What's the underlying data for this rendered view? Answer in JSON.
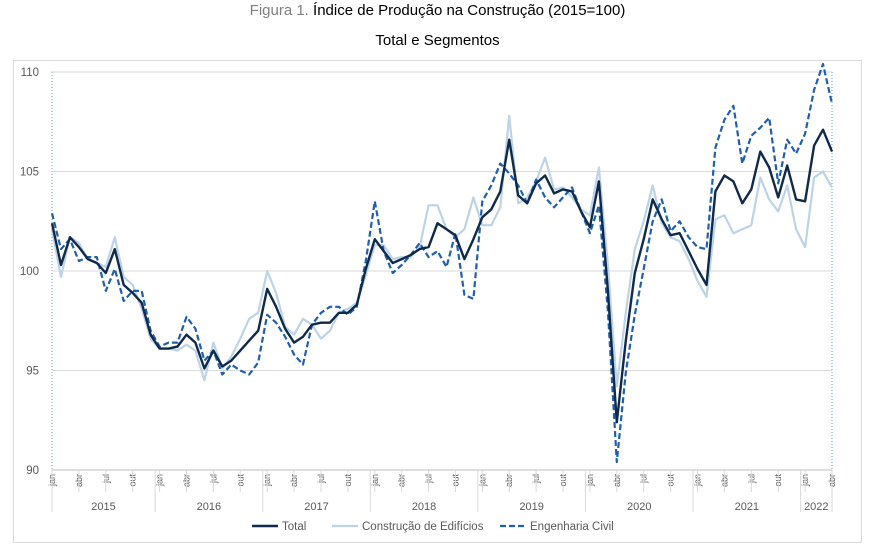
{
  "figure": {
    "title_lead": "Figura 1.",
    "title_main": "Índice de Produção na Construção (2015=100)",
    "subtitle": "Total e Segmentos"
  },
  "colors": {
    "total": "#0f2a4a",
    "edificios": "#bcd3e8",
    "civil": "#1f5fae",
    "grid": "#d9d9d9",
    "axis": "#bfbfbf"
  },
  "chart_data": {
    "type": "line",
    "title": "Índice de Produção na Construção (2015=100)",
    "subtitle": "Total e Segmentos",
    "xlabel": "",
    "ylabel": "",
    "ylim": [
      90,
      110
    ],
    "yticks": [
      90,
      95,
      100,
      105,
      110
    ],
    "grid": true,
    "legend_position": "bottom",
    "month_tick_labels": [
      "jan",
      "abr",
      "jul",
      "out"
    ],
    "years": [
      "2015",
      "2016",
      "2017",
      "2018",
      "2019",
      "2020",
      "2021",
      "2022"
    ],
    "x_start": "2015-01",
    "x_end": "2022-04",
    "series": [
      {
        "name": "Total",
        "style": "solid",
        "values": [
          102.4,
          100.3,
          101.7,
          101.2,
          100.6,
          100.4,
          99.9,
          101.1,
          99.3,
          98.9,
          98.4,
          96.8,
          96.1,
          96.1,
          96.2,
          96.8,
          96.4,
          95.1,
          96.0,
          95.2,
          95.5,
          96.0,
          96.5,
          97.0,
          99.1,
          98.2,
          97.1,
          96.4,
          96.7,
          97.3,
          97.4,
          97.4,
          97.9,
          97.9,
          98.3,
          100.1,
          101.6,
          101.0,
          100.4,
          100.6,
          100.8,
          101.1,
          101.2,
          102.4,
          102.1,
          101.8,
          100.6,
          101.6,
          102.7,
          103.1,
          104.0,
          106.6,
          103.8,
          103.4,
          104.4,
          104.8,
          103.9,
          104.1,
          104.0,
          103.0,
          102.2,
          104.5,
          99.0,
          92.4,
          96.5,
          99.9,
          101.6,
          103.6,
          102.6,
          101.8,
          101.9,
          101.0,
          100.1,
          99.3,
          104.0,
          104.8,
          104.5,
          103.4,
          104.1,
          106.0,
          105.2,
          103.7,
          105.3,
          103.6,
          103.5,
          106.3,
          107.1,
          106.0
        ]
      },
      {
        "name": "Construção de Edifícios",
        "style": "solid",
        "values": [
          102.1,
          99.7,
          101.7,
          101.4,
          100.6,
          100.4,
          100.2,
          101.7,
          99.7,
          99.3,
          98.1,
          96.6,
          96.1,
          96.1,
          96.0,
          96.3,
          96.0,
          94.5,
          96.4,
          95.1,
          95.7,
          96.6,
          97.6,
          97.9,
          100.0,
          98.9,
          97.2,
          96.8,
          97.6,
          97.3,
          96.6,
          97.0,
          97.9,
          98.1,
          98.4,
          99.8,
          101.3,
          101.3,
          100.6,
          100.7,
          100.7,
          101.2,
          103.3,
          103.3,
          102.1,
          101.7,
          102.1,
          103.7,
          102.3,
          102.3,
          103.2,
          107.8,
          103.4,
          103.7,
          104.5,
          105.7,
          104.1,
          104.2,
          103.7,
          103.1,
          102.8,
          105.2,
          100.3,
          94.2,
          97.9,
          101.1,
          102.5,
          104.3,
          102.4,
          101.7,
          101.5,
          100.6,
          99.5,
          98.7,
          102.6,
          102.8,
          101.9,
          102.1,
          102.3,
          104.7,
          103.6,
          103.0,
          104.3,
          102.1,
          101.2,
          104.7,
          105.0,
          104.2
        ]
      },
      {
        "name": "Engenharia Civil",
        "style": "dashed",
        "values": [
          102.9,
          101.1,
          101.6,
          100.5,
          100.7,
          100.7,
          99.0,
          100.1,
          98.5,
          99.0,
          99.0,
          97.0,
          96.2,
          96.4,
          96.4,
          97.7,
          97.1,
          95.5,
          96.0,
          94.8,
          95.3,
          95.0,
          94.8,
          95.4,
          97.8,
          97.4,
          96.7,
          95.8,
          95.3,
          97.3,
          97.9,
          98.2,
          98.2,
          97.8,
          98.2,
          100.5,
          103.5,
          101.0,
          99.9,
          100.3,
          100.8,
          101.4,
          100.7,
          101.0,
          100.2,
          101.9,
          98.8,
          98.6,
          103.5,
          104.3,
          105.4,
          104.9,
          104.3,
          103.4,
          104.6,
          103.7,
          103.2,
          103.7,
          104.2,
          103.0,
          101.9,
          103.3,
          98.0,
          90.4,
          94.9,
          97.8,
          100.1,
          102.5,
          103.6,
          102.0,
          102.5,
          101.7,
          101.2,
          101.1,
          106.2,
          107.6,
          108.3,
          105.4,
          106.8,
          107.2,
          107.7,
          104.4,
          106.6,
          105.9,
          106.9,
          109.1,
          110.4,
          108.4
        ]
      }
    ]
  }
}
